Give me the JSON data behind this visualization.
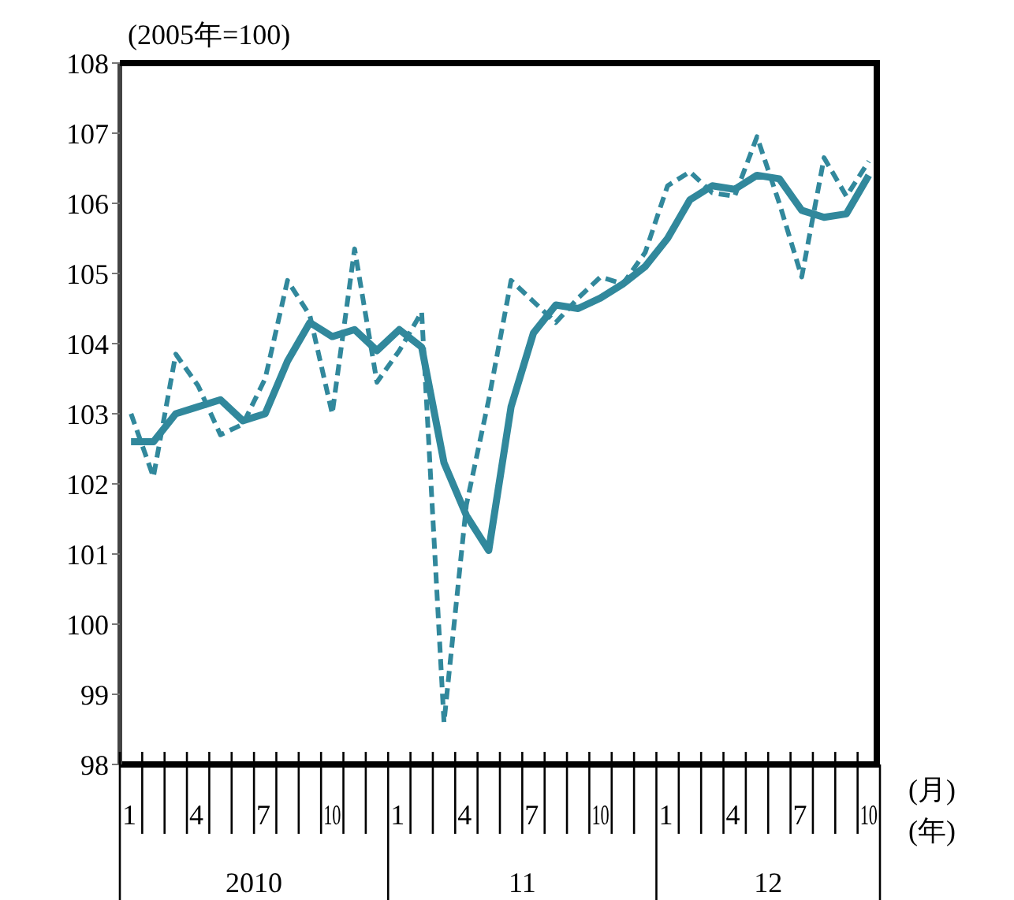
{
  "chart_data": {
    "type": "line",
    "ylabel": "(2005年=100)",
    "xlabel": "(月)",
    "annotations": [
      "(年)",
      "2010",
      "11",
      "12"
    ],
    "categories": [
      "1",
      null,
      null,
      "4",
      null,
      null,
      "7",
      null,
      null,
      "10",
      null,
      null,
      "1",
      null,
      null,
      "4",
      null,
      null,
      "7",
      null,
      null,
      "10",
      null,
      null,
      "1",
      null,
      null,
      "4",
      null,
      null,
      "7",
      null,
      null,
      "10"
    ],
    "series": [
      {
        "color": "#31889c",
        "line_style": "solid",
        "values": [
          102.6,
          102.6,
          103.0,
          103.1,
          103.2,
          102.9,
          103.0,
          103.75,
          104.3,
          104.1,
          104.2,
          103.9,
          104.2,
          103.95,
          102.3,
          101.55,
          101.05,
          103.1,
          104.15,
          104.55,
          104.5,
          104.65,
          104.85,
          105.1,
          105.5,
          106.05,
          106.25,
          106.2,
          106.4,
          106.35,
          105.9,
          105.8,
          105.85,
          106.4
        ]
      },
      {
        "color": "#31889c",
        "line_style": "dashed",
        "values": [
          103.0,
          102.1,
          103.85,
          103.4,
          102.7,
          102.85,
          103.5,
          104.9,
          104.4,
          103.0,
          105.35,
          103.45,
          103.9,
          104.45,
          98.6,
          101.7,
          103.2,
          104.9,
          104.6,
          104.3,
          104.65,
          104.95,
          104.85,
          105.3,
          106.25,
          106.45,
          106.15,
          106.1,
          106.95,
          106.0,
          104.95,
          106.65,
          106.1,
          106.6
        ]
      }
    ],
    "ylim": [
      98,
      108
    ],
    "yticks": [
      98,
      99,
      100,
      101,
      102,
      103,
      104,
      105,
      106,
      107,
      108
    ],
    "grid": false,
    "legend": false,
    "marker": "none"
  }
}
